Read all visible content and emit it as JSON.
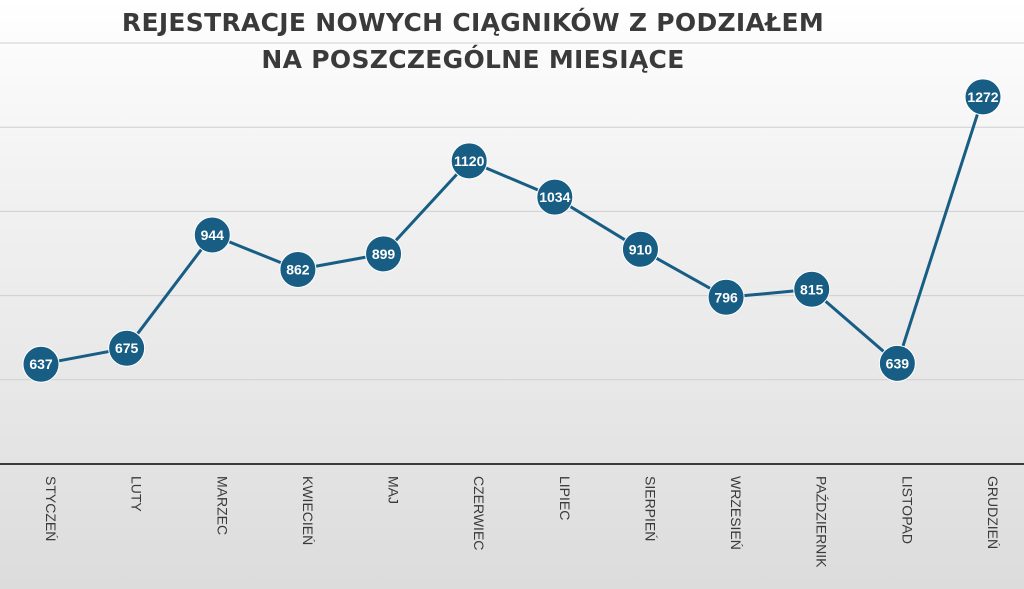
{
  "chart_data": {
    "type": "line",
    "title": "REJESTRACJE NOWYCH CIĄGNIKÓW Z PODZIAŁEM NA POSZCZEGÓLNE MIESIĄCE",
    "title_lines": [
      "REJESTRACJE NOWYCH CIĄGNIKÓW Z PODZIAŁEM",
      "NA POSZCZEGÓLNE MIESIĄCE"
    ],
    "categories": [
      "STYCZEŃ",
      "LUTY",
      "MARZEC",
      "KWIECIEŃ",
      "MAJ",
      "CZERWIEC",
      "LIPIEC",
      "SIERPIEŃ",
      "WRZESIEŃ",
      "PAŹDZIERNIK",
      "LISTOPAD",
      "GRUDZIEŃ"
    ],
    "series": [
      {
        "values": [
          637,
          675,
          944,
          862,
          899,
          1120,
          1034,
          910,
          796,
          815,
          639,
          1272
        ]
      }
    ],
    "ylim": [
      400,
      1400
    ],
    "gridlines": [
      400,
      600,
      800,
      1000,
      1200,
      1400
    ],
    "grid": true,
    "data_labels": true,
    "colors": {
      "series": "#175d84",
      "label_text": "#ffffff",
      "title": "#3a3a3a"
    }
  }
}
